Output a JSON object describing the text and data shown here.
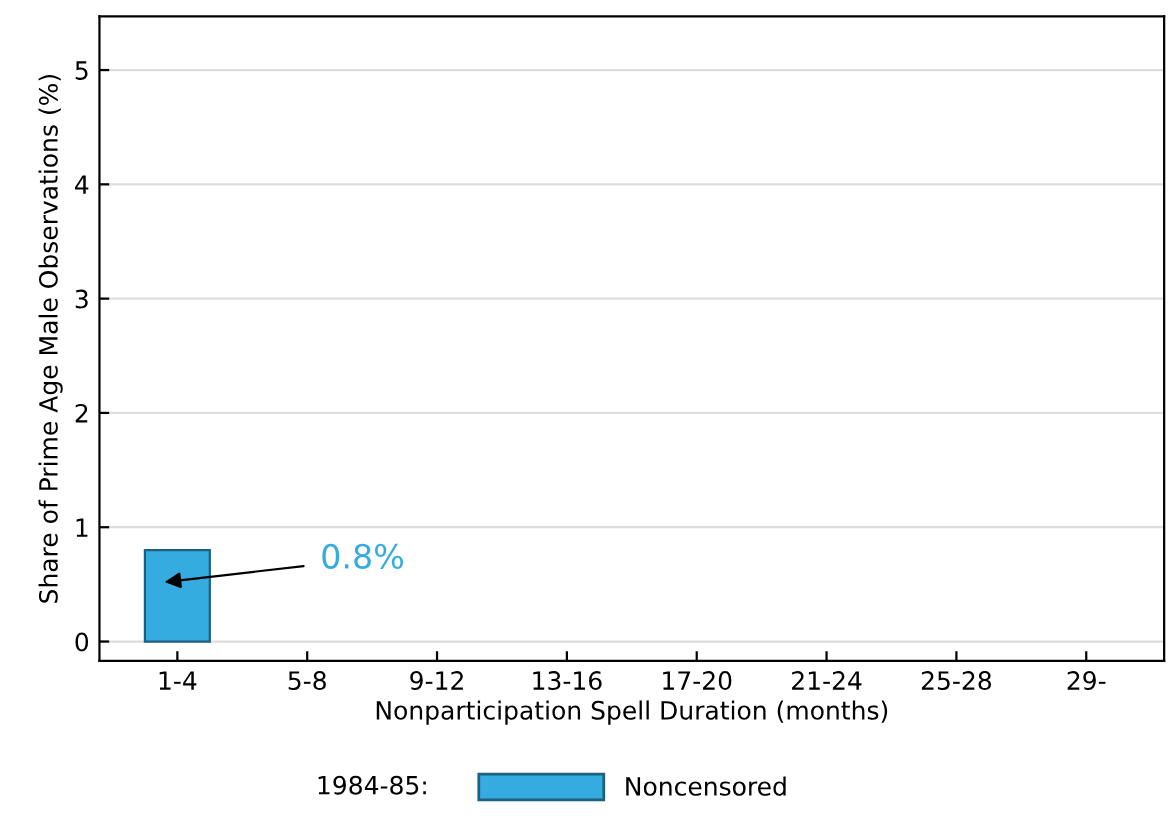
{
  "chart_data": {
    "type": "bar",
    "xlabel": "Nonparticipation Spell Duration (months)",
    "ylabel": "Share of Prime Age Male Observations (%)",
    "legend_title": "1984-85:",
    "categories": [
      "1-4",
      "5-8",
      "9-12",
      "13-16",
      "17-20",
      "21-24",
      "25-28",
      "29-"
    ],
    "series": [
      {
        "name": "Noncensored",
        "color": "#35ace0",
        "values": [
          0.8,
          null,
          null,
          null,
          null,
          null,
          null,
          null
        ]
      }
    ],
    "annotations": [
      "0.8%"
    ],
    "ylim": [
      -0.17,
      5.47
    ],
    "yticks": [
      0,
      1,
      2,
      3,
      4,
      5
    ],
    "grid": "y",
    "legend": "bottom"
  }
}
